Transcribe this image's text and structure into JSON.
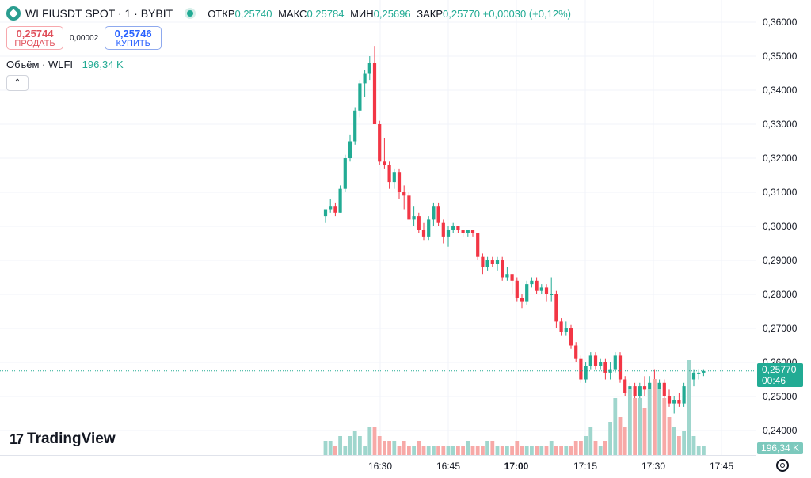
{
  "header": {
    "symbol": "WLFIUSDT SPOT · 1 · BYBIT",
    "ohlc": {
      "open_label": "ОТКР",
      "open": "0,25740",
      "high_label": "МАКС",
      "high": "0,25784",
      "low_label": "МИН",
      "low": "0,25696",
      "close_label": "ЗАКР",
      "close": "0,25770",
      "change": "+0,00030 (+0,12%)"
    }
  },
  "trade": {
    "sell_price": "0,25744",
    "sell_label": "ПРОДАТЬ",
    "spread": "0,00002",
    "buy_price": "0,25746",
    "buy_label": "КУПИТЬ"
  },
  "volume_legend": {
    "label": "Объём · WLFI",
    "value": "196,34 K"
  },
  "price_axis": {
    "labels": [
      "0,36000",
      "0,35000",
      "0,34000",
      "0,33000",
      "0,32000",
      "0,31000",
      "0,30000",
      "0,29000",
      "0,28000",
      "0,27000",
      "0,26000",
      "0,25000",
      "0,24000"
    ],
    "last_price": "0,25770",
    "countdown": "00:46",
    "volume_badge": "196,34 K"
  },
  "time_axis": {
    "labels": [
      "16:30",
      "16:45",
      "17:00",
      "17:15",
      "17:30",
      "17:45"
    ]
  },
  "branding": {
    "logo_text": "TradingView",
    "mark": "17"
  },
  "colors": {
    "up": "#22ab94",
    "down": "#f23645",
    "vol_up": "#9fd6cd",
    "vol_down": "#f7a9a7"
  },
  "chart_data": {
    "type": "candlestick",
    "interval": "1 minute",
    "ylim": [
      0.24,
      0.36
    ],
    "x_ticks": [
      "16:30",
      "16:45",
      "17:00",
      "17:15",
      "17:30",
      "17:45"
    ],
    "candles": [
      {
        "o": 0.303,
        "h": 0.304,
        "l": 0.301,
        "c": 0.305
      },
      {
        "o": 0.305,
        "h": 0.308,
        "l": 0.304,
        "c": 0.306
      },
      {
        "o": 0.306,
        "h": 0.307,
        "l": 0.303,
        "c": 0.304
      },
      {
        "o": 0.304,
        "h": 0.312,
        "l": 0.304,
        "c": 0.311
      },
      {
        "o": 0.311,
        "h": 0.321,
        "l": 0.31,
        "c": 0.32
      },
      {
        "o": 0.32,
        "h": 0.327,
        "l": 0.319,
        "c": 0.325
      },
      {
        "o": 0.325,
        "h": 0.335,
        "l": 0.324,
        "c": 0.334
      },
      {
        "o": 0.334,
        "h": 0.343,
        "l": 0.332,
        "c": 0.342
      },
      {
        "o": 0.342,
        "h": 0.346,
        "l": 0.338,
        "c": 0.345
      },
      {
        "o": 0.345,
        "h": 0.35,
        "l": 0.343,
        "c": 0.348
      },
      {
        "o": 0.348,
        "h": 0.353,
        "l": 0.33,
        "c": 0.33
      },
      {
        "o": 0.33,
        "h": 0.331,
        "l": 0.318,
        "c": 0.319
      },
      {
        "o": 0.319,
        "h": 0.326,
        "l": 0.317,
        "c": 0.318
      },
      {
        "o": 0.318,
        "h": 0.319,
        "l": 0.311,
        "c": 0.313
      },
      {
        "o": 0.313,
        "h": 0.317,
        "l": 0.311,
        "c": 0.316
      },
      {
        "o": 0.316,
        "h": 0.317,
        "l": 0.308,
        "c": 0.31
      },
      {
        "o": 0.31,
        "h": 0.312,
        "l": 0.305,
        "c": 0.309
      },
      {
        "o": 0.309,
        "h": 0.31,
        "l": 0.302,
        "c": 0.302
      },
      {
        "o": 0.302,
        "h": 0.306,
        "l": 0.3,
        "c": 0.303
      },
      {
        "o": 0.303,
        "h": 0.304,
        "l": 0.298,
        "c": 0.299
      },
      {
        "o": 0.299,
        "h": 0.301,
        "l": 0.296,
        "c": 0.297
      },
      {
        "o": 0.297,
        "h": 0.303,
        "l": 0.296,
        "c": 0.302
      },
      {
        "o": 0.302,
        "h": 0.307,
        "l": 0.3,
        "c": 0.306
      },
      {
        "o": 0.306,
        "h": 0.307,
        "l": 0.3,
        "c": 0.301
      },
      {
        "o": 0.301,
        "h": 0.302,
        "l": 0.295,
        "c": 0.297
      },
      {
        "o": 0.297,
        "h": 0.3,
        "l": 0.294,
        "c": 0.299
      },
      {
        "o": 0.299,
        "h": 0.301,
        "l": 0.298,
        "c": 0.3
      },
      {
        "o": 0.3,
        "h": 0.3,
        "l": 0.298,
        "c": 0.299
      },
      {
        "o": 0.299,
        "h": 0.299,
        "l": 0.297,
        "c": 0.298
      },
      {
        "o": 0.298,
        "h": 0.299,
        "l": 0.297,
        "c": 0.299
      },
      {
        "o": 0.299,
        "h": 0.299,
        "l": 0.297,
        "c": 0.298
      },
      {
        "o": 0.298,
        "h": 0.298,
        "l": 0.29,
        "c": 0.291
      },
      {
        "o": 0.291,
        "h": 0.292,
        "l": 0.286,
        "c": 0.288
      },
      {
        "o": 0.288,
        "h": 0.291,
        "l": 0.287,
        "c": 0.29
      },
      {
        "o": 0.29,
        "h": 0.291,
        "l": 0.288,
        "c": 0.289
      },
      {
        "o": 0.289,
        "h": 0.291,
        "l": 0.287,
        "c": 0.29
      },
      {
        "o": 0.29,
        "h": 0.291,
        "l": 0.284,
        "c": 0.285
      },
      {
        "o": 0.285,
        "h": 0.288,
        "l": 0.284,
        "c": 0.286
      },
      {
        "o": 0.286,
        "h": 0.286,
        "l": 0.28,
        "c": 0.284
      },
      {
        "o": 0.284,
        "h": 0.285,
        "l": 0.278,
        "c": 0.279
      },
      {
        "o": 0.279,
        "h": 0.28,
        "l": 0.276,
        "c": 0.278
      },
      {
        "o": 0.278,
        "h": 0.284,
        "l": 0.277,
        "c": 0.283
      },
      {
        "o": 0.283,
        "h": 0.285,
        "l": 0.282,
        "c": 0.284
      },
      {
        "o": 0.284,
        "h": 0.285,
        "l": 0.28,
        "c": 0.281
      },
      {
        "o": 0.281,
        "h": 0.283,
        "l": 0.28,
        "c": 0.282
      },
      {
        "o": 0.282,
        "h": 0.283,
        "l": 0.278,
        "c": 0.28
      },
      {
        "o": 0.28,
        "h": 0.285,
        "l": 0.278,
        "c": 0.28
      },
      {
        "o": 0.28,
        "h": 0.281,
        "l": 0.27,
        "c": 0.272
      },
      {
        "o": 0.272,
        "h": 0.273,
        "l": 0.268,
        "c": 0.269
      },
      {
        "o": 0.269,
        "h": 0.272,
        "l": 0.268,
        "c": 0.27
      },
      {
        "o": 0.27,
        "h": 0.271,
        "l": 0.264,
        "c": 0.265
      },
      {
        "o": 0.265,
        "h": 0.266,
        "l": 0.26,
        "c": 0.261
      },
      {
        "o": 0.261,
        "h": 0.262,
        "l": 0.254,
        "c": 0.255
      },
      {
        "o": 0.255,
        "h": 0.26,
        "l": 0.254,
        "c": 0.259
      },
      {
        "o": 0.259,
        "h": 0.263,
        "l": 0.258,
        "c": 0.262
      },
      {
        "o": 0.262,
        "h": 0.263,
        "l": 0.258,
        "c": 0.259
      },
      {
        "o": 0.259,
        "h": 0.261,
        "l": 0.258,
        "c": 0.26
      },
      {
        "o": 0.26,
        "h": 0.261,
        "l": 0.255,
        "c": 0.257
      },
      {
        "o": 0.257,
        "h": 0.26,
        "l": 0.255,
        "c": 0.258
      },
      {
        "o": 0.258,
        "h": 0.263,
        "l": 0.257,
        "c": 0.262
      },
      {
        "o": 0.262,
        "h": 0.263,
        "l": 0.254,
        "c": 0.255
      },
      {
        "o": 0.255,
        "h": 0.256,
        "l": 0.25,
        "c": 0.251
      },
      {
        "o": 0.251,
        "h": 0.254,
        "l": 0.249,
        "c": 0.253
      },
      {
        "o": 0.253,
        "h": 0.254,
        "l": 0.249,
        "c": 0.25
      },
      {
        "o": 0.25,
        "h": 0.254,
        "l": 0.249,
        "c": 0.253
      },
      {
        "o": 0.253,
        "h": 0.256,
        "l": 0.25,
        "c": 0.252
      },
      {
        "o": 0.252,
        "h": 0.256,
        "l": 0.25,
        "c": 0.254
      },
      {
        "o": 0.254,
        "h": 0.258,
        "l": 0.251,
        "c": 0.252
      },
      {
        "o": 0.252,
        "h": 0.255,
        "l": 0.251,
        "c": 0.254
      },
      {
        "o": 0.254,
        "h": 0.255,
        "l": 0.248,
        "c": 0.25
      },
      {
        "o": 0.25,
        "h": 0.252,
        "l": 0.247,
        "c": 0.248
      },
      {
        "o": 0.248,
        "h": 0.25,
        "l": 0.245,
        "c": 0.249
      },
      {
        "o": 0.249,
        "h": 0.251,
        "l": 0.247,
        "c": 0.248
      },
      {
        "o": 0.248,
        "h": 0.254,
        "l": 0.247,
        "c": 0.253
      },
      {
        "o": 0.253,
        "h": 0.256,
        "l": 0.252,
        "c": 0.255
      },
      {
        "o": 0.255,
        "h": 0.258,
        "l": 0.253,
        "c": 0.257
      },
      {
        "o": 0.257,
        "h": 0.258,
        "l": 0.255,
        "c": 0.257
      },
      {
        "o": 0.257,
        "h": 0.258,
        "l": 0.256,
        "c": 0.2575
      }
    ],
    "volumes": [
      3,
      3,
      2,
      4,
      2,
      4,
      5,
      4,
      2,
      6,
      6,
      4,
      3,
      3,
      3,
      2,
      3,
      2,
      2,
      3,
      2,
      2,
      2,
      2,
      2,
      2,
      2,
      2,
      2,
      3,
      2,
      2,
      2,
      3,
      3,
      2,
      2,
      2,
      2,
      3,
      2,
      2,
      2,
      2,
      2,
      2,
      3,
      2,
      2,
      2,
      2,
      3,
      3,
      4,
      6,
      3,
      2,
      3,
      7,
      12,
      8,
      6,
      14,
      12,
      12,
      10,
      14,
      16,
      14,
      12,
      8,
      6,
      4,
      5,
      20,
      4,
      2,
      2
    ]
  }
}
